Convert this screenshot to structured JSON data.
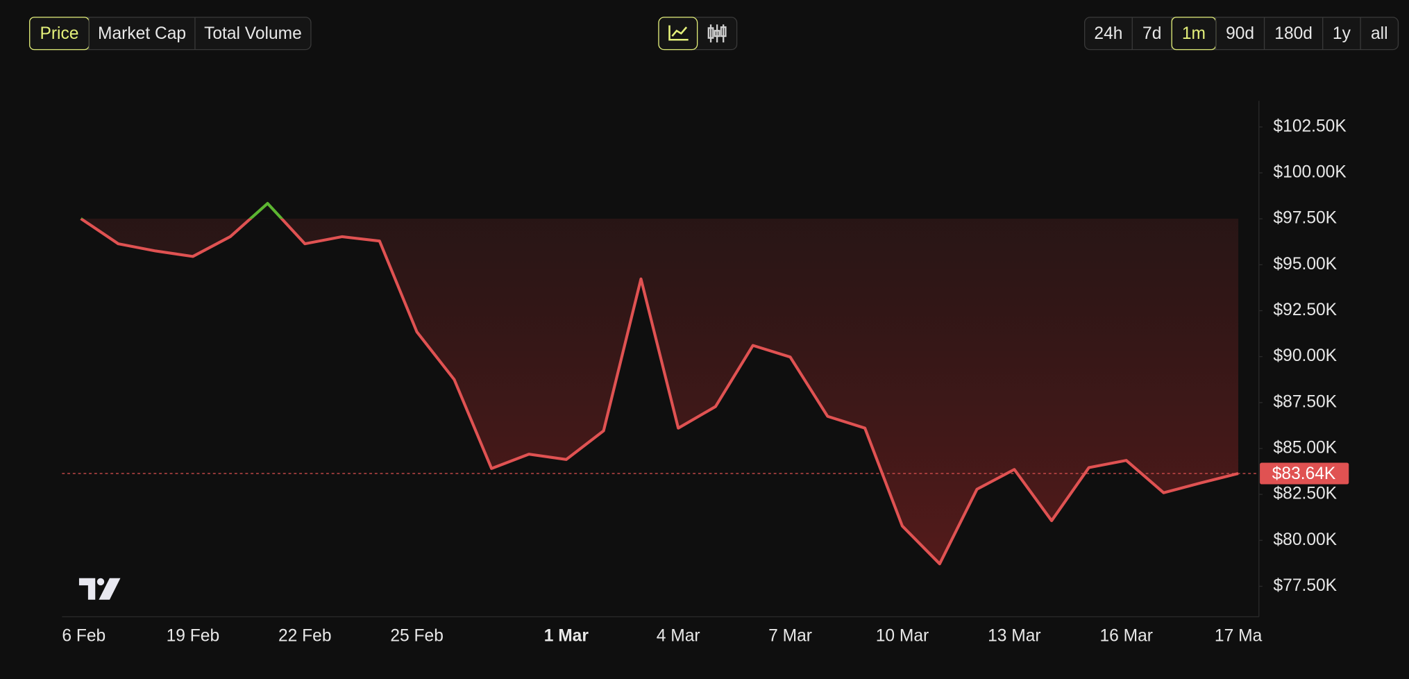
{
  "toolbar": {
    "metrics": [
      "Price",
      "Market Cap",
      "Total Volume"
    ],
    "active_metric": "Price",
    "ranges": [
      "24h",
      "7d",
      "1m",
      "90d",
      "180d",
      "1y",
      "all"
    ],
    "active_range": "1m"
  },
  "chart_data": {
    "type": "line",
    "categories": [
      "6 Feb",
      null,
      null,
      "19 Feb",
      null,
      null,
      "22 Feb",
      null,
      null,
      "25 Feb",
      null,
      null,
      null,
      "1 Mar",
      null,
      null,
      "4 Mar",
      null,
      null,
      "7 Mar",
      null,
      null,
      "10 Mar",
      null,
      null,
      "13 Mar",
      null,
      null,
      "16 Mar",
      null,
      null,
      "17 Ma"
    ],
    "values": [
      97.51,
      96.14,
      95.75,
      95.45,
      96.53,
      98.34,
      96.14,
      96.53,
      96.29,
      91.35,
      88.75,
      83.91,
      84.69,
      84.4,
      85.96,
      94.23,
      86.11,
      87.28,
      90.61,
      89.98,
      86.75,
      86.11,
      80.78,
      78.72,
      82.78,
      83.86,
      81.07,
      83.96,
      84.35,
      82.59,
      83.13,
      83.64
    ],
    "value_labels": [
      null,
      null,
      null,
      null,
      null,
      null,
      null,
      null,
      null,
      null,
      null,
      null,
      null,
      null,
      null,
      null,
      null,
      null,
      null,
      null,
      null,
      null,
      null,
      null,
      null,
      null,
      null,
      null,
      null,
      null,
      null,
      "$83.64K"
    ],
    "color": "#e05252",
    "up_color": "#5cb531",
    "ylim": [
      75.84,
      103.92
    ],
    "yticks": [
      {
        "value": 77.5,
        "label": "$77.50K"
      },
      {
        "value": 80,
        "label": "$80.00K"
      },
      {
        "value": 82.5,
        "label": "$82.50K"
      },
      {
        "value": 85,
        "label": "$85.00K"
      },
      {
        "value": 87.5,
        "label": "$87.50K"
      },
      {
        "value": 90,
        "label": "$90.00K"
      },
      {
        "value": 92.5,
        "label": "$92.50K"
      },
      {
        "value": 95,
        "label": "$95.00K"
      },
      {
        "value": 97.5,
        "label": "$97.50K"
      },
      {
        "value": 100,
        "label": "$100.00K"
      },
      {
        "value": 102.5,
        "label": "$102.50K"
      }
    ]
  }
}
